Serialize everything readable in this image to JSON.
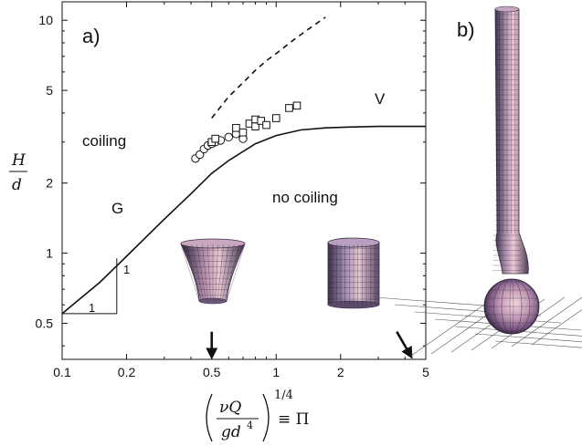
{
  "chart_data": {
    "type": "scatter",
    "panel_labels": {
      "a": "a)",
      "b": "b)"
    },
    "x_scale": "log",
    "y_scale": "log",
    "xlim": [
      0.1,
      5
    ],
    "ylim": [
      0.35,
      12
    ],
    "x_ticks": [
      0.1,
      0.2,
      0.5,
      1,
      2,
      5
    ],
    "x_tick_labels": [
      "0.1",
      "0.2",
      "0.5",
      "1",
      "2",
      "5"
    ],
    "y_ticks": [
      0.5,
      1,
      2,
      5,
      10
    ],
    "y_tick_labels": [
      "0.5",
      "1",
      "2",
      "5",
      "10"
    ],
    "ylabel": {
      "numerator": "H",
      "denominator": "d"
    },
    "xlabel": {
      "numerator": "νQ",
      "denominator": "gd",
      "denominator_power": "4",
      "exponent": "1/4",
      "equiv": "≡ Π"
    },
    "region_labels": {
      "coiling": "coiling",
      "no_coiling": "no coiling",
      "G": "G",
      "V": "V"
    },
    "slope_triangle": {
      "run_label": "1",
      "rise_label": "1",
      "x": [
        0.1,
        0.18
      ],
      "y": [
        0.55,
        0.95
      ]
    },
    "series": [
      {
        "style": "solid",
        "x": [
          0.1,
          0.15,
          0.2,
          0.3,
          0.4,
          0.5,
          0.6,
          0.8,
          1.0,
          1.3,
          1.7,
          2.2,
          3.0,
          5.0
        ],
        "y": [
          0.55,
          0.75,
          0.97,
          1.4,
          1.8,
          2.2,
          2.5,
          2.95,
          3.2,
          3.38,
          3.45,
          3.48,
          3.5,
          3.5
        ]
      },
      {
        "style": "dashed",
        "x": [
          0.5,
          0.6,
          0.7,
          0.8,
          0.9,
          1.0,
          1.2,
          1.4,
          1.7
        ],
        "y": [
          3.8,
          4.7,
          5.4,
          6.1,
          6.7,
          7.2,
          8.2,
          9.1,
          10.3
        ]
      },
      {
        "marker": "circle",
        "x": [
          0.42,
          0.44,
          0.46,
          0.48,
          0.5,
          0.52,
          0.55,
          0.6,
          0.65,
          0.7
        ],
        "y": [
          2.55,
          2.65,
          2.8,
          2.9,
          2.95,
          3.0,
          3.05,
          3.15,
          3.25,
          3.1
        ]
      },
      {
        "marker": "square",
        "x": [
          0.5,
          0.52,
          0.65,
          0.7,
          0.75,
          0.8,
          0.8,
          0.85,
          0.9,
          1.0,
          1.15,
          1.25
        ],
        "y": [
          3.0,
          3.1,
          3.45,
          3.3,
          3.6,
          3.75,
          3.5,
          3.7,
          3.55,
          3.8,
          4.2,
          4.3
        ]
      }
    ],
    "arrows": [
      {
        "x": 0.5,
        "y_from": 0.46,
        "y_to": 0.37
      },
      {
        "x": 4.2,
        "y_from": 0.46,
        "y_to": 0.37
      }
    ]
  },
  "colors": {
    "axis": "#111111",
    "surface_dark": "#2a2238",
    "surface_light": "#e9c9d6",
    "surface_mid": "#a88aa5",
    "grid_floor": "#555555"
  },
  "icons": {
    "cone_surface": "tapered-cylinder-icon",
    "cylinder_surface": "cylinder-icon",
    "filament_surface": "coiling-filament-icon"
  }
}
